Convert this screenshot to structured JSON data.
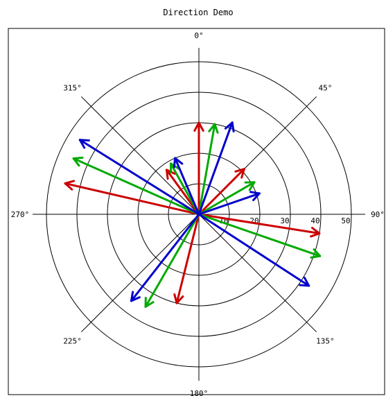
{
  "chart_data": {
    "type": "polar-vector",
    "title": "Direction Demo",
    "angle_labels": [
      {
        "deg": 0,
        "text": "0°"
      },
      {
        "deg": 45,
        "text": "45°"
      },
      {
        "deg": 90,
        "text": "90°"
      },
      {
        "deg": 135,
        "text": "135°"
      },
      {
        "deg": 180,
        "text": "180°"
      },
      {
        "deg": 225,
        "text": "225°"
      },
      {
        "deg": 270,
        "text": "270°"
      },
      {
        "deg": 315,
        "text": "315°"
      }
    ],
    "radial_ticks": [
      10,
      20,
      30,
      40,
      50
    ],
    "radial_labels": [
      "10",
      "20",
      "30",
      "40",
      "50"
    ],
    "rmax": 50,
    "grid": true,
    "series": [
      {
        "color": "#cc0000",
        "vectors": [
          {
            "angle": 0,
            "length": 30
          },
          {
            "angle": 45,
            "length": 21
          },
          {
            "angle": 99,
            "length": 40
          },
          {
            "angle": 194,
            "length": 30
          },
          {
            "angle": 283,
            "length": 45
          },
          {
            "angle": 324,
            "length": 18
          }
        ]
      },
      {
        "color": "#00aa00",
        "vectors": [
          {
            "angle": 10,
            "length": 30
          },
          {
            "angle": 60,
            "length": 21
          },
          {
            "angle": 109,
            "length": 42
          },
          {
            "angle": 210,
            "length": 35
          },
          {
            "angle": 294,
            "length": 45
          },
          {
            "angle": 331,
            "length": 19
          }
        ]
      },
      {
        "color": "#0000cc",
        "vectors": [
          {
            "angle": 20,
            "length": 32
          },
          {
            "angle": 71,
            "length": 21
          },
          {
            "angle": 123,
            "length": 43
          },
          {
            "angle": 218,
            "length": 36
          },
          {
            "angle": 302,
            "length": 46
          },
          {
            "angle": 337,
            "length": 20
          }
        ]
      }
    ]
  }
}
